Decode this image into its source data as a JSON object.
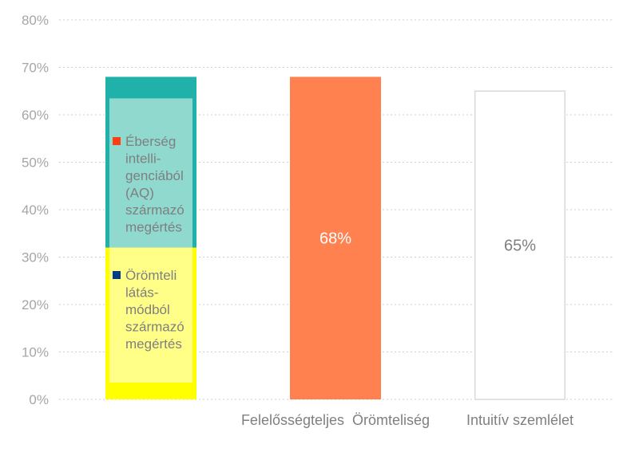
{
  "chart_data": {
    "type": "bar",
    "y_ticks": [
      "0%",
      "10%",
      "20%",
      "30%",
      "40%",
      "50%",
      "60%",
      "70%",
      "80%"
    ],
    "ylim": [
      0,
      80
    ],
    "grid": true,
    "categories": [
      "",
      "Felelősségteljes  Örömteliség",
      "Intuitív szemlélet"
    ],
    "bars": [
      {
        "category": "",
        "stack": [
          {
            "from": 0,
            "to": 32,
            "fill": "#ffff00",
            "inner_fill": "#ffff88"
          },
          {
            "from": 32,
            "to": 68,
            "fill": "#20b2aa",
            "inner_fill": "#8fd9cf"
          }
        ],
        "legend": [
          {
            "label_lines": [
              "Éberség",
              "intelli-",
              "genciából",
              "(AQ)",
              "származó",
              "megértés"
            ],
            "marker_color": "#ff3d14"
          },
          {
            "label_lines": [
              "Örömteli",
              "látás-",
              "módból",
              "származó",
              "megértés"
            ],
            "marker_color": "#003f87"
          }
        ]
      },
      {
        "category": "Felelősségteljes  Örömteliség",
        "value": 68,
        "label": "68%",
        "fill": "#ff8150",
        "label_color": "#ffffff"
      },
      {
        "category": "Intuitív szemlélet",
        "value": 65,
        "label": "65%",
        "fill": "#ffffff",
        "stroke": "#d9d9d9",
        "label_color": "#7f7f7f"
      }
    ]
  }
}
